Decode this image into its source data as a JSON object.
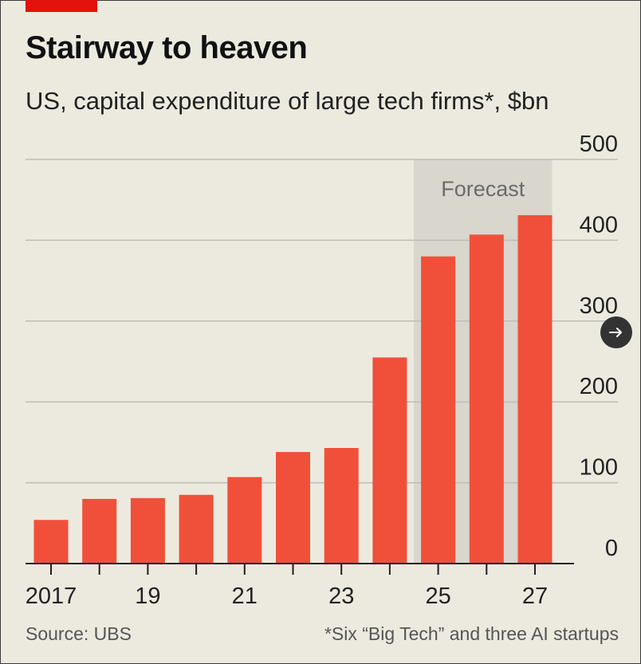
{
  "header": {
    "title": "Stairway to heaven",
    "subtitle": "US, capital expenditure of large tech firms*, $bn"
  },
  "footer": {
    "source": "Source: UBS",
    "note": "*Six “Big Tech” and three AI startups"
  },
  "nav": {
    "icon": "arrow-right-icon"
  },
  "colors": {
    "bar": "#f0503a",
    "forecast_band": "#d8d6cd",
    "gridline": "#bdbdb6",
    "axis": "#1f1f1f",
    "background": "#eceadf"
  },
  "chart_data": {
    "type": "bar",
    "title": "Stairway to heaven",
    "subtitle": "US, capital expenditure of large tech firms*, $bn",
    "x": [
      2017,
      2018,
      2019,
      2020,
      2021,
      2022,
      2023,
      2024,
      2025,
      2026,
      2027
    ],
    "x_tick_labels": [
      "2017",
      "19",
      "21",
      "23",
      "25",
      "27"
    ],
    "x_tick_label_years": [
      2017,
      2019,
      2021,
      2023,
      2025,
      2027
    ],
    "values": [
      54,
      80,
      81,
      85,
      107,
      138,
      143,
      255,
      380,
      407,
      431
    ],
    "ylim": [
      0,
      500
    ],
    "y_ticks": [
      0,
      100,
      200,
      300,
      400,
      500
    ],
    "y_axis_side": "right",
    "grid": true,
    "annotations": [
      {
        "text": "Forecast",
        "from": 2025,
        "to": 2027
      }
    ]
  }
}
